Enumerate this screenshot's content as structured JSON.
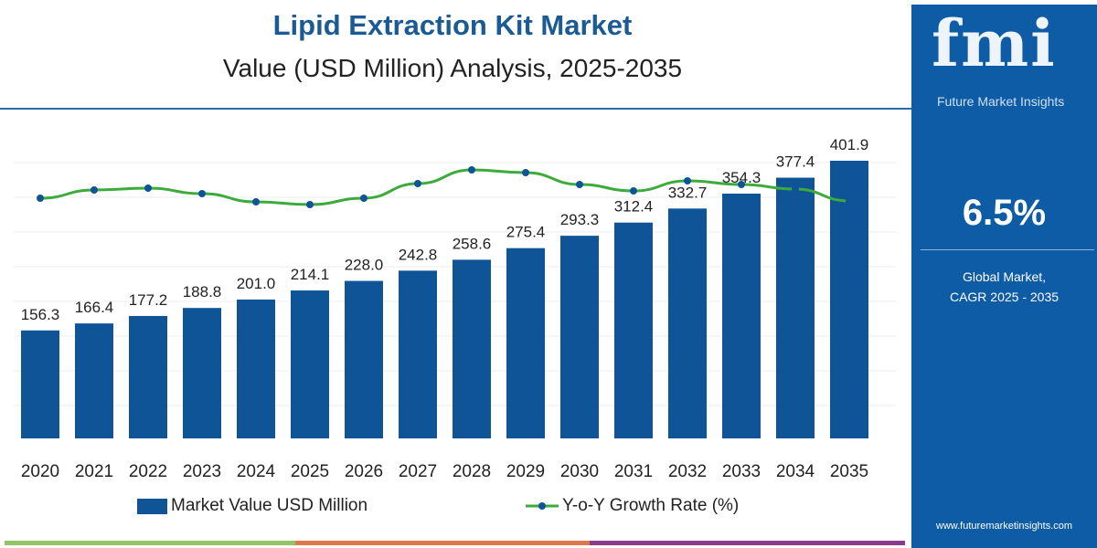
{
  "header": {
    "title": "Lipid Extraction Kit Market",
    "subtitle": "Value (USD Million) Analysis, 2025-2035"
  },
  "panel": {
    "logo": "fmi",
    "logo_sub": "Future Market Insights",
    "cagr": "6.5%",
    "cagr_label_1": "Global Market,",
    "cagr_label_2": "CAGR 2025 - 2035",
    "url": "www.futuremarketinsights.com",
    "color": "#0e5ba6"
  },
  "chart_data": {
    "type": "bar",
    "categories": [
      "2020",
      "2021",
      "2022",
      "2023",
      "2024",
      "2025",
      "2026",
      "2027",
      "2028",
      "2029",
      "2030",
      "2031",
      "2032",
      "2033",
      "2034",
      "2035"
    ],
    "series": [
      {
        "name": "Market Value USD Million",
        "type": "bar",
        "color": "#0e5496",
        "values": [
          156.3,
          166.4,
          177.2,
          188.8,
          201.0,
          214.1,
          228.0,
          242.8,
          258.6,
          275.4,
          293.3,
          312.4,
          332.7,
          354.3,
          377.4,
          401.9
        ]
      },
      {
        "name": "Y-o-Y Growth Rate (%)",
        "type": "line",
        "color": "#3cab3c",
        "marker_color": "#0e5496",
        "values": [
          6.46,
          6.55,
          6.57,
          6.51,
          6.42,
          6.39,
          6.46,
          6.62,
          6.77,
          6.74,
          6.61,
          6.54,
          6.65,
          6.61,
          6.56,
          6.43
        ]
      }
    ],
    "ylim": [
      0,
      420
    ],
    "grid": true,
    "legend": "bottom"
  },
  "legend": {
    "bar": "Market Value USD Million",
    "line": "Y-o-Y Growth Rate (%)"
  }
}
